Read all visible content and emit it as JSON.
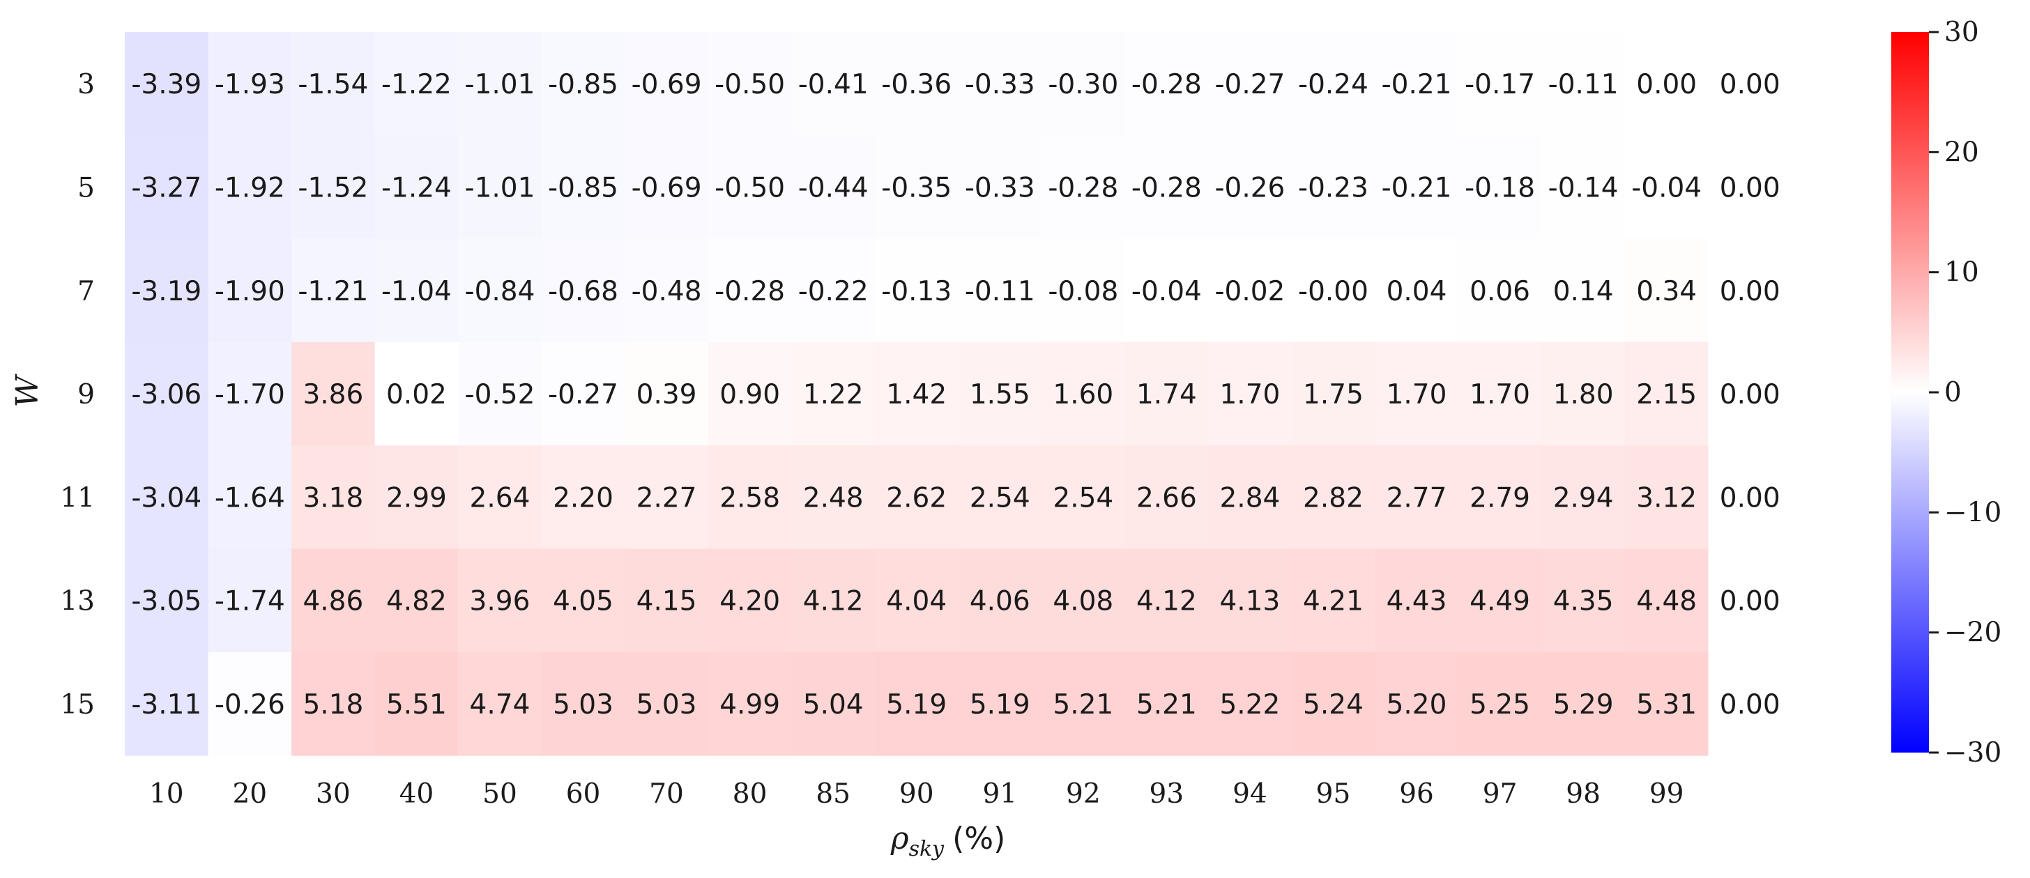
{
  "chart_data": {
    "type": "heatmap",
    "xlabel_symbol": "ρ",
    "xlabel_subscript": "sky",
    "xlabel_unit": "(%)",
    "ylabel": "W",
    "x_categories": [
      "10",
      "20",
      "30",
      "40",
      "50",
      "60",
      "70",
      "80",
      "85",
      "90",
      "91",
      "92",
      "93",
      "94",
      "95",
      "96",
      "97",
      "98",
      "99",
      ""
    ],
    "y_categories": [
      "3",
      "5",
      "7",
      "9",
      "11",
      "13",
      "15"
    ],
    "values": [
      [
        -3.39,
        -1.93,
        -1.54,
        -1.22,
        -1.01,
        -0.85,
        -0.69,
        -0.5,
        -0.41,
        -0.36,
        -0.33,
        -0.3,
        -0.28,
        -0.27,
        -0.24,
        -0.21,
        -0.17,
        -0.11,
        0.0,
        0.0
      ],
      [
        -3.27,
        -1.92,
        -1.52,
        -1.24,
        -1.01,
        -0.85,
        -0.69,
        -0.5,
        -0.44,
        -0.35,
        -0.33,
        -0.28,
        -0.28,
        -0.26,
        -0.23,
        -0.21,
        -0.18,
        -0.14,
        -0.04,
        0.0
      ],
      [
        -3.19,
        -1.9,
        -1.21,
        -1.04,
        -0.84,
        -0.68,
        -0.48,
        -0.28,
        -0.22,
        -0.13,
        -0.11,
        -0.08,
        -0.04,
        -0.02,
        -0.0,
        0.04,
        0.06,
        0.14,
        0.34,
        0.0
      ],
      [
        -3.06,
        -1.7,
        3.86,
        0.02,
        -0.52,
        -0.27,
        0.39,
        0.9,
        1.22,
        1.42,
        1.55,
        1.6,
        1.74,
        1.7,
        1.75,
        1.7,
        1.7,
        1.8,
        2.15,
        0.0
      ],
      [
        -3.04,
        -1.64,
        3.18,
        2.99,
        2.64,
        2.2,
        2.27,
        2.58,
        2.48,
        2.62,
        2.54,
        2.54,
        2.66,
        2.84,
        2.82,
        2.77,
        2.79,
        2.94,
        3.12,
        0.0
      ],
      [
        -3.05,
        -1.74,
        4.86,
        4.82,
        3.96,
        4.05,
        4.15,
        4.2,
        4.12,
        4.04,
        4.06,
        4.08,
        4.12,
        4.13,
        4.21,
        4.43,
        4.49,
        4.35,
        4.48,
        0.0
      ],
      [
        -3.11,
        -0.26,
        5.18,
        5.51,
        4.74,
        5.03,
        5.03,
        4.99,
        5.04,
        5.19,
        5.19,
        5.21,
        5.21,
        5.22,
        5.24,
        5.2,
        5.25,
        5.29,
        5.31,
        0.0
      ]
    ],
    "labels": [
      [
        "-3.39",
        "-1.93",
        "-1.54",
        "-1.22",
        "-1.01",
        "-0.85",
        "-0.69",
        "-0.50",
        "-0.41",
        "-0.36",
        "-0.33",
        "-0.30",
        "-0.28",
        "-0.27",
        "-0.24",
        "-0.21",
        "-0.17",
        "-0.11",
        "0.00",
        "0.00"
      ],
      [
        "-3.27",
        "-1.92",
        "-1.52",
        "-1.24",
        "-1.01",
        "-0.85",
        "-0.69",
        "-0.50",
        "-0.44",
        "-0.35",
        "-0.33",
        "-0.28",
        "-0.28",
        "-0.26",
        "-0.23",
        "-0.21",
        "-0.18",
        "-0.14",
        "-0.04",
        "0.00"
      ],
      [
        "-3.19",
        "-1.90",
        "-1.21",
        "-1.04",
        "-0.84",
        "-0.68",
        "-0.48",
        "-0.28",
        "-0.22",
        "-0.13",
        "-0.11",
        "-0.08",
        "-0.04",
        "-0.02",
        "-0.00",
        "0.04",
        "0.06",
        "0.14",
        "0.34",
        "0.00"
      ],
      [
        "-3.06",
        "-1.70",
        "3.86",
        "0.02",
        "-0.52",
        "-0.27",
        "0.39",
        "0.90",
        "1.22",
        "1.42",
        "1.55",
        "1.60",
        "1.74",
        "1.70",
        "1.75",
        "1.70",
        "1.70",
        "1.80",
        "2.15",
        "0.00"
      ],
      [
        "-3.04",
        "-1.64",
        "3.18",
        "2.99",
        "2.64",
        "2.20",
        "2.27",
        "2.58",
        "2.48",
        "2.62",
        "2.54",
        "2.54",
        "2.66",
        "2.84",
        "2.82",
        "2.77",
        "2.79",
        "2.94",
        "3.12",
        "0.00"
      ],
      [
        "-3.05",
        "-1.74",
        "4.86",
        "4.82",
        "3.96",
        "4.05",
        "4.15",
        "4.20",
        "4.12",
        "4.04",
        "4.06",
        "4.08",
        "4.12",
        "4.13",
        "4.21",
        "4.43",
        "4.49",
        "4.35",
        "4.48",
        "0.00"
      ],
      [
        "-3.11",
        "-0.26",
        "5.18",
        "5.51",
        "4.74",
        "5.03",
        "5.03",
        "4.99",
        "5.04",
        "5.19",
        "5.19",
        "5.21",
        "5.21",
        "5.22",
        "5.24",
        "5.20",
        "5.25",
        "5.29",
        "5.31",
        "0.00"
      ]
    ],
    "colorbar": {
      "vmin": -30,
      "vmax": 30,
      "ticks": [
        30,
        20,
        10,
        0,
        -10,
        -20,
        -30
      ],
      "tick_labels": [
        "30",
        "20",
        "10",
        "0",
        "−10",
        "−20",
        "−30"
      ],
      "colormap": "bwr",
      "colors": {
        "low": "#0000ff",
        "mid": "#ffffff",
        "high": "#ff0000"
      }
    }
  }
}
